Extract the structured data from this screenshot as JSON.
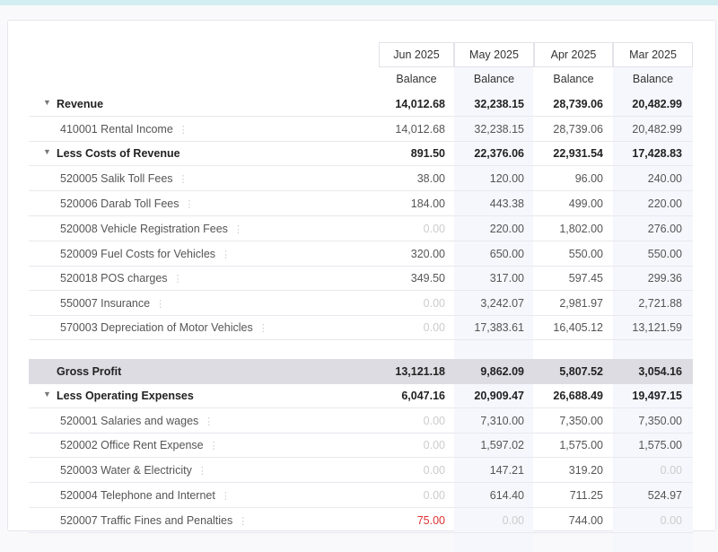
{
  "columns": [
    {
      "period": "Jun 2025",
      "sub": "Balance"
    },
    {
      "period": "May 2025",
      "sub": "Balance"
    },
    {
      "period": "Apr 2025",
      "sub": "Balance"
    },
    {
      "period": "Mar 2025",
      "sub": "Balance"
    }
  ],
  "rows": [
    {
      "type": "section",
      "label": "Revenue",
      "values": [
        "14,012.68",
        "32,238.15",
        "28,739.06",
        "20,482.99"
      ]
    },
    {
      "type": "account",
      "label": "410001 Rental Income",
      "values": [
        "14,012.68",
        "32,238.15",
        "28,739.06",
        "20,482.99"
      ]
    },
    {
      "type": "section",
      "label": "Less Costs of Revenue",
      "values": [
        "891.50",
        "22,376.06",
        "22,931.54",
        "17,428.83"
      ]
    },
    {
      "type": "account",
      "label": "520005 Salik Toll Fees",
      "values": [
        "38.00",
        "120.00",
        "96.00",
        "240.00"
      ]
    },
    {
      "type": "account",
      "label": "520006 Darab Toll Fees",
      "values": [
        "184.00",
        "443.38",
        "499.00",
        "220.00"
      ]
    },
    {
      "type": "account",
      "label": "520008 Vehicle Registration Fees",
      "values": [
        "0.00",
        "220.00",
        "1,802.00",
        "276.00"
      ]
    },
    {
      "type": "account",
      "label": "520009 Fuel Costs for Vehicles",
      "values": [
        "320.00",
        "650.00",
        "550.00",
        "550.00"
      ]
    },
    {
      "type": "account",
      "label": "520018 POS charges",
      "values": [
        "349.50",
        "317.00",
        "597.45",
        "299.36"
      ]
    },
    {
      "type": "account",
      "label": "550007 Insurance",
      "values": [
        "0.00",
        "3,242.07",
        "2,981.97",
        "2,721.88"
      ]
    },
    {
      "type": "account",
      "label": "570003 Depreciation of Motor Vehicles",
      "values": [
        "0.00",
        "17,383.61",
        "16,405.12",
        "13,121.59"
      ]
    },
    {
      "type": "total",
      "label": "Gross Profit",
      "values": [
        "13,121.18",
        "9,862.09",
        "5,807.52",
        "3,054.16"
      ]
    },
    {
      "type": "section",
      "label": "Less Operating Expenses",
      "values": [
        "6,047.16",
        "20,909.47",
        "26,688.49",
        "19,497.15"
      ]
    },
    {
      "type": "account",
      "label": "520001 Salaries and wages",
      "values": [
        "0.00",
        "7,310.00",
        "7,350.00",
        "7,350.00"
      ]
    },
    {
      "type": "account",
      "label": "520002 Office Rent Expense",
      "values": [
        "0.00",
        "1,597.02",
        "1,575.00",
        "1,575.00"
      ]
    },
    {
      "type": "account",
      "label": "520003 Water & Electricity",
      "values": [
        "0.00",
        "147.21",
        "319.20",
        "0.00"
      ]
    },
    {
      "type": "account",
      "label": "520004 Telephone and Internet",
      "values": [
        "0.00",
        "614.40",
        "711.25",
        "524.97"
      ]
    },
    {
      "type": "account",
      "label": "520007 Traffic Fines and Penalties",
      "values": [
        "75.00",
        "0.00",
        "744.00",
        "0.00"
      ],
      "negative_col": 0
    }
  ]
}
